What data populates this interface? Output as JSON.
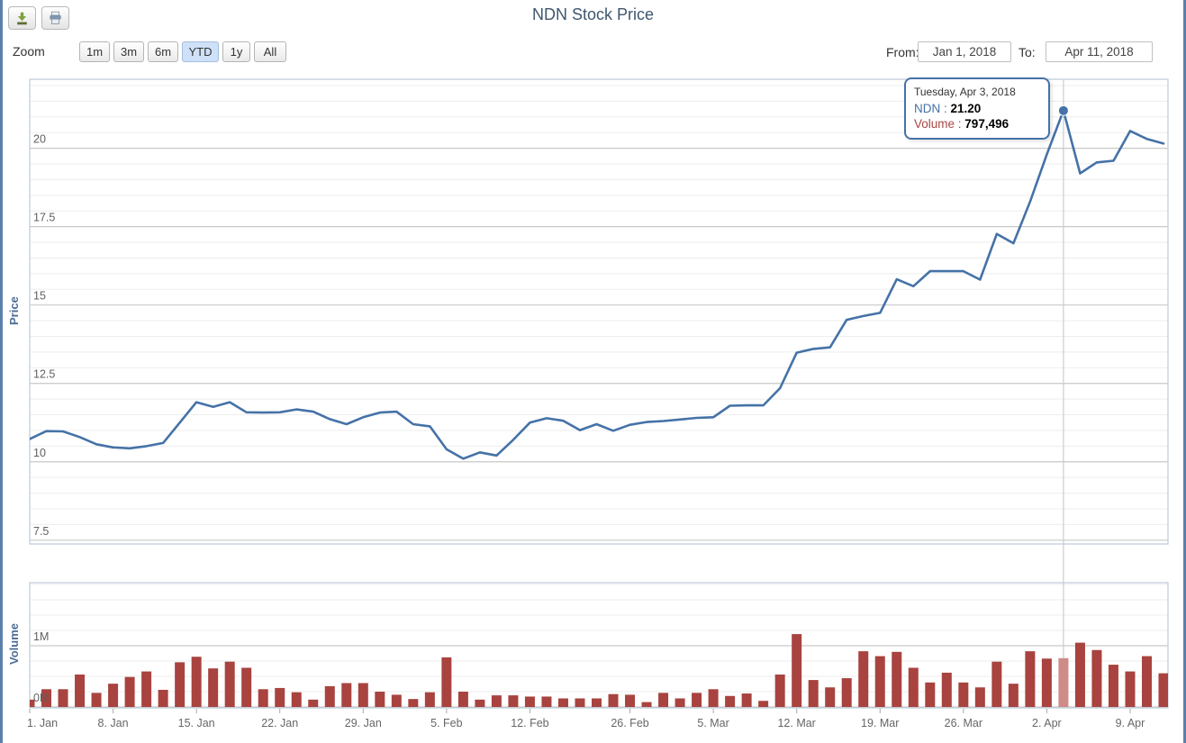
{
  "header": {
    "title": "NDN Stock Price"
  },
  "toolbar": {
    "icons": [
      "download-icon",
      "print-icon"
    ]
  },
  "range_selector": {
    "zoom_label": "Zoom",
    "buttons": [
      {
        "label": "1m",
        "selected": false
      },
      {
        "label": "3m",
        "selected": false
      },
      {
        "label": "6m",
        "selected": false
      },
      {
        "label": "YTD",
        "selected": true
      },
      {
        "label": "1y",
        "selected": false
      },
      {
        "label": "All",
        "selected": false
      }
    ],
    "from_label": "From:",
    "from_value": "Jan 1, 2018",
    "to_label": "To:",
    "to_value": "Apr 11, 2018"
  },
  "tooltip": {
    "date": "Tuesday, Apr 3, 2018",
    "series_label": "NDN :",
    "price": "21.20",
    "volume_label": "Volume :",
    "volume": "797,496"
  },
  "chart_data": {
    "type": "line",
    "title": "NDN Stock Price",
    "colors": {
      "line": "#4572A7",
      "bar": "#A8433F",
      "bar_highlight": "#CE8B88",
      "grid_major": "#C9C9C9",
      "grid_minor": "#EDEDED",
      "pane_border": "#C2CEDB",
      "crosshair": "#CCCCCC",
      "axis_label": "#666666"
    },
    "dates": [
      "Jan 1",
      "Jan 2",
      "Jan 3",
      "Jan 4",
      "Jan 5",
      "Jan 8",
      "Jan 9",
      "Jan 10",
      "Jan 11",
      "Jan 12",
      "Jan 15",
      "Jan 16",
      "Jan 17",
      "Jan 18",
      "Jan 19",
      "Jan 22",
      "Jan 23",
      "Jan 24",
      "Jan 25",
      "Jan 26",
      "Jan 29",
      "Jan 30",
      "Jan 31",
      "Feb 1",
      "Feb 2",
      "Feb 5",
      "Feb 6",
      "Feb 7",
      "Feb 8",
      "Feb 9",
      "Feb 12",
      "Feb 13",
      "Feb 14",
      "Feb 21",
      "Feb 22",
      "Feb 23",
      "Feb 26",
      "Feb 27",
      "Feb 28",
      "Mar 1",
      "Mar 2",
      "Mar 5",
      "Mar 6",
      "Mar 7",
      "Mar 8",
      "Mar 9",
      "Mar 12",
      "Mar 13",
      "Mar 14",
      "Mar 15",
      "Mar 16",
      "Mar 19",
      "Mar 20",
      "Mar 21",
      "Mar 22",
      "Mar 23",
      "Mar 26",
      "Mar 27",
      "Mar 28",
      "Mar 29",
      "Mar 30",
      "Apr 2",
      "Apr 3",
      "Apr 4",
      "Apr 5",
      "Apr 6",
      "Apr 9",
      "Apr 10",
      "Apr 11"
    ],
    "series": [
      {
        "name": "NDN",
        "type": "line",
        "values": [
          10.73,
          10.98,
          10.97,
          10.79,
          10.56,
          10.46,
          10.43,
          10.5,
          10.6,
          11.25,
          11.9,
          11.75,
          11.9,
          11.58,
          11.57,
          11.58,
          11.67,
          11.6,
          11.36,
          11.2,
          11.42,
          11.57,
          11.6,
          11.2,
          11.13,
          10.4,
          10.1,
          10.3,
          10.2,
          10.7,
          11.25,
          11.39,
          11.31,
          11.01,
          11.2,
          10.99,
          11.18,
          11.27,
          11.3,
          11.35,
          11.4,
          11.42,
          11.79,
          11.8,
          11.8,
          12.35,
          13.48,
          13.6,
          13.65,
          14.53,
          14.65,
          14.75,
          15.82,
          15.6,
          16.08,
          16.08,
          16.08,
          15.81,
          17.27,
          16.97,
          18.3,
          19.8,
          21.2,
          19.2,
          19.55,
          19.6,
          20.55,
          20.3,
          20.15
        ]
      },
      {
        "name": "Volume",
        "type": "bar",
        "unit": "M",
        "values": [
          0.12,
          0.29,
          0.29,
          0.53,
          0.23,
          0.38,
          0.49,
          0.58,
          0.28,
          0.73,
          0.82,
          0.63,
          0.74,
          0.64,
          0.29,
          0.31,
          0.24,
          0.12,
          0.34,
          0.39,
          0.39,
          0.25,
          0.2,
          0.13,
          0.24,
          0.81,
          0.25,
          0.12,
          0.19,
          0.19,
          0.17,
          0.17,
          0.14,
          0.14,
          0.14,
          0.21,
          0.2,
          0.08,
          0.23,
          0.14,
          0.23,
          0.29,
          0.18,
          0.22,
          0.1,
          0.53,
          1.19,
          0.44,
          0.32,
          0.47,
          0.91,
          0.83,
          0.9,
          0.64,
          0.4,
          0.56,
          0.4,
          0.32,
          0.74,
          0.38,
          0.91,
          0.79,
          0.797,
          1.05,
          0.93,
          0.69,
          0.58,
          0.83,
          0.55
        ]
      }
    ],
    "x_ticks": [
      {
        "label": "1. Jan",
        "i": 0
      },
      {
        "label": "8. Jan",
        "i": 5
      },
      {
        "label": "15. Jan",
        "i": 10
      },
      {
        "label": "22. Jan",
        "i": 15
      },
      {
        "label": "29. Jan",
        "i": 20
      },
      {
        "label": "5. Feb",
        "i": 25
      },
      {
        "label": "12. Feb",
        "i": 30
      },
      {
        "label": "26. Feb",
        "i": 36
      },
      {
        "label": "5. Mar",
        "i": 41
      },
      {
        "label": "12. Mar",
        "i": 46
      },
      {
        "label": "19. Mar",
        "i": 51
      },
      {
        "label": "26. Mar",
        "i": 56
      },
      {
        "label": "2. Apr",
        "i": 61
      },
      {
        "label": "9. Apr",
        "i": 66
      }
    ],
    "price_axis": {
      "label": "Price",
      "ticks": [
        7.5,
        10,
        12.5,
        15,
        17.5,
        20
      ],
      "minor_step": 0.5,
      "range": [
        7.38,
        22.2
      ]
    },
    "volume_axis": {
      "label": "Volume",
      "ticks": [
        [
          0,
          "0M"
        ],
        [
          1,
          "1M"
        ]
      ],
      "minor_step": 0.25,
      "range": [
        0,
        2.03
      ]
    },
    "highlight": {
      "index": 62,
      "date": "Tuesday, Apr 3, 2018",
      "price": 21.2,
      "volume": 797496
    }
  }
}
